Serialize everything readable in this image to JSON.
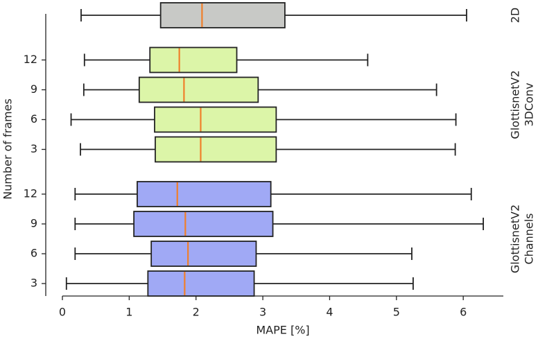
{
  "chart_data": {
    "type": "boxplot",
    "x_label": "MAPE [%]",
    "y_label": "Number of frames",
    "xlim": [
      0,
      6.6
    ],
    "xticks": [
      0,
      1,
      2,
      3,
      4,
      5,
      6
    ],
    "median_color": "#f07f2a",
    "groups": [
      {
        "label_lines": [
          "2D"
        ],
        "color": "#c8c9c6",
        "categories": [
          null
        ],
        "boxes": [
          {
            "min": 0.28,
            "q1": 1.47,
            "median": 2.09,
            "q3": 3.33,
            "max": 6.05
          }
        ]
      },
      {
        "label_lines": [
          "GlottisnetV2",
          "3DConv"
        ],
        "color": "#dcf5a8",
        "categories": [
          "12",
          "9",
          "6",
          "3"
        ],
        "boxes": [
          {
            "min": 0.33,
            "q1": 1.31,
            "median": 1.75,
            "q3": 2.61,
            "max": 4.57
          },
          {
            "min": 0.32,
            "q1": 1.15,
            "median": 1.82,
            "q3": 2.93,
            "max": 5.6
          },
          {
            "min": 0.13,
            "q1": 1.38,
            "median": 2.07,
            "q3": 3.2,
            "max": 5.89
          },
          {
            "min": 0.27,
            "q1": 1.39,
            "median": 2.07,
            "q3": 3.2,
            "max": 5.88
          }
        ]
      },
      {
        "label_lines": [
          "GlottisnetV2",
          "Channels"
        ],
        "color": "#a0a9f5",
        "categories": [
          "12",
          "9",
          "6",
          "3"
        ],
        "boxes": [
          {
            "min": 0.19,
            "q1": 1.12,
            "median": 1.72,
            "q3": 3.12,
            "max": 6.12
          },
          {
            "min": 0.19,
            "q1": 1.07,
            "median": 1.84,
            "q3": 3.15,
            "max": 6.3
          },
          {
            "min": 0.19,
            "q1": 1.33,
            "median": 1.88,
            "q3": 2.9,
            "max": 5.23
          },
          {
            "min": 0.06,
            "q1": 1.28,
            "median": 1.83,
            "q3": 2.87,
            "max": 5.25
          }
        ]
      }
    ]
  }
}
